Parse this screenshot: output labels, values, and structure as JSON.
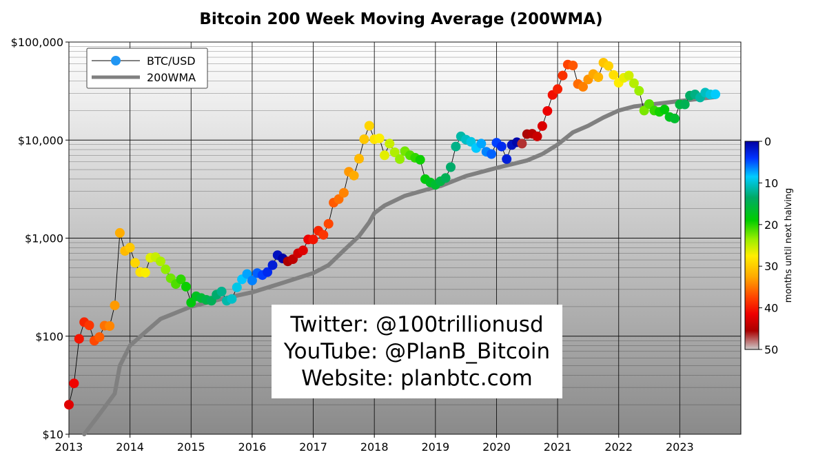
{
  "chart_data": {
    "type": "scatter",
    "title": "Bitcoin 200 Week Moving Average (200WMA)",
    "xlabel": "",
    "ylabel": "",
    "y_scale": "log",
    "ylim": [
      10,
      100000
    ],
    "xlim": [
      "2013-01-01",
      "2024-01-01"
    ],
    "y_ticks": [
      {
        "value": 10,
        "label": "$10"
      },
      {
        "value": 100,
        "label": "$100"
      },
      {
        "value": 1000,
        "label": "$1,000"
      },
      {
        "value": 10000,
        "label": "$10,000"
      },
      {
        "value": 100000,
        "label": "$100,000"
      }
    ],
    "x_ticks": [
      "2013",
      "2014",
      "2015",
      "2016",
      "2017",
      "2018",
      "2019",
      "2020",
      "2021",
      "2022",
      "2023"
    ],
    "grid": true,
    "legend": {
      "position": "top-left",
      "entries": [
        {
          "label": "BTC/USD",
          "style": "line-with-markers",
          "color": "#2196f3"
        },
        {
          "label": "200WMA",
          "style": "thick-line",
          "color": "#808080"
        }
      ]
    },
    "colorbar": {
      "label": "months until next halving",
      "min": 0,
      "max": 50,
      "ticks": [
        "0",
        "10",
        "20",
        "30",
        "40",
        "50"
      ],
      "colormap": "nipy_spectral_reversed"
    },
    "series": [
      {
        "name": "BTC/USD",
        "x": [
          "2013-01-01",
          "2013-02-01",
          "2013-03-01",
          "2013-04-01",
          "2013-05-01",
          "2013-06-01",
          "2013-07-01",
          "2013-08-01",
          "2013-09-01",
          "2013-10-01",
          "2013-11-01",
          "2013-12-01",
          "2014-01-01",
          "2014-02-01",
          "2014-03-01",
          "2014-04-01",
          "2014-05-01",
          "2014-06-01",
          "2014-07-01",
          "2014-08-01",
          "2014-09-01",
          "2014-10-01",
          "2014-11-01",
          "2014-12-01",
          "2015-01-01",
          "2015-02-01",
          "2015-03-01",
          "2015-04-01",
          "2015-05-01",
          "2015-06-01",
          "2015-07-01",
          "2015-08-01",
          "2015-09-01",
          "2015-10-01",
          "2015-11-01",
          "2015-12-01",
          "2016-01-01",
          "2016-02-01",
          "2016-03-01",
          "2016-04-01",
          "2016-05-01",
          "2016-06-01",
          "2016-07-01",
          "2016-08-01",
          "2016-09-01",
          "2016-10-01",
          "2016-11-01",
          "2016-12-01",
          "2017-01-01",
          "2017-02-01",
          "2017-03-01",
          "2017-04-01",
          "2017-05-01",
          "2017-06-01",
          "2017-07-01",
          "2017-08-01",
          "2017-09-01",
          "2017-10-01",
          "2017-11-01",
          "2017-12-01",
          "2018-01-01",
          "2018-02-01",
          "2018-03-01",
          "2018-04-01",
          "2018-05-01",
          "2018-06-01",
          "2018-07-01",
          "2018-08-01",
          "2018-09-01",
          "2018-10-01",
          "2018-11-01",
          "2018-12-01",
          "2019-01-01",
          "2019-02-01",
          "2019-03-01",
          "2019-04-01",
          "2019-05-01",
          "2019-06-01",
          "2019-07-01",
          "2019-08-01",
          "2019-09-01",
          "2019-10-01",
          "2019-11-01",
          "2019-12-01",
          "2020-01-01",
          "2020-02-01",
          "2020-03-01",
          "2020-04-01",
          "2020-05-01",
          "2020-06-01",
          "2020-07-01",
          "2020-08-01",
          "2020-09-01",
          "2020-10-01",
          "2020-11-01",
          "2020-12-01",
          "2021-01-01",
          "2021-02-01",
          "2021-03-01",
          "2021-04-01",
          "2021-05-01",
          "2021-06-01",
          "2021-07-01",
          "2021-08-01",
          "2021-09-01",
          "2021-10-01",
          "2021-11-01",
          "2021-12-01",
          "2022-01-01",
          "2022-02-01",
          "2022-03-01",
          "2022-04-01",
          "2022-05-01",
          "2022-06-01",
          "2022-07-01",
          "2022-08-01",
          "2022-09-01",
          "2022-10-01",
          "2022-11-01",
          "2022-12-01",
          "2023-01-01",
          "2023-02-01",
          "2023-03-01",
          "2023-04-01",
          "2023-05-01",
          "2023-06-01",
          "2023-07-01",
          "2023-08-01"
        ],
        "y": [
          20,
          33,
          94,
          139,
          129,
          90,
          98,
          128,
          127,
          206,
          1130,
          740,
          800,
          560,
          450,
          445,
          630,
          640,
          580,
          480,
          390,
          340,
          380,
          320,
          220,
          255,
          245,
          235,
          230,
          265,
          285,
          230,
          240,
          315,
          380,
          430,
          370,
          440,
          420,
          450,
          530,
          670,
          620,
          580,
          610,
          700,
          750,
          970,
          970,
          1190,
          1080,
          1400,
          2300,
          2500,
          2900,
          4750,
          4350,
          6450,
          10200,
          14000,
          10200,
          10400,
          7000,
          9200,
          7500,
          6400,
          7700,
          7000,
          6600,
          6300,
          4000,
          3700,
          3500,
          3800,
          4100,
          5300,
          8600,
          10900,
          10100,
          9600,
          8300,
          9200,
          7600,
          7200,
          9400,
          8600,
          6400,
          8900,
          9500,
          9200,
          11500,
          11600,
          10900,
          13900,
          19800,
          28900,
          33100,
          45500,
          58900,
          57700,
          37300,
          35000,
          41500,
          47100,
          43800,
          61500,
          57000,
          46200,
          38500,
          43200,
          45500,
          38000,
          31800,
          20000,
          23300,
          20000,
          19400,
          20500,
          17200,
          16600,
          23100,
          23100,
          28400,
          29200,
          27200,
          30500,
          29200,
          29300
        ]
      },
      {
        "name": "200WMA",
        "x": [
          "2013-04-01",
          "2013-07-01",
          "2013-10-01",
          "2013-11-01",
          "2014-01-01",
          "2014-04-01",
          "2014-07-01",
          "2015-01-01",
          "2015-07-01",
          "2016-01-01",
          "2016-07-01",
          "2017-01-01",
          "2017-04-01",
          "2017-07-01",
          "2017-10-01",
          "2017-12-01",
          "2018-01-01",
          "2018-03-01",
          "2018-07-01",
          "2018-12-01",
          "2019-02-01",
          "2019-07-01",
          "2020-01-01",
          "2020-07-01",
          "2020-10-01",
          "2021-01-01",
          "2021-04-01",
          "2021-07-01",
          "2021-10-01",
          "2022-01-01",
          "2022-04-01",
          "2022-07-01",
          "2023-01-01",
          "2023-08-01"
        ],
        "y": [
          10,
          16,
          26,
          50,
          80,
          110,
          150,
          200,
          240,
          280,
          350,
          440,
          530,
          750,
          1050,
          1450,
          1800,
          2150,
          2700,
          3200,
          3400,
          4300,
          5200,
          6200,
          7200,
          9000,
          12000,
          14000,
          17000,
          20000,
          22000,
          23000,
          25000,
          27500
        ]
      }
    ],
    "annotation_lines": [
      "Twitter: @100trillionusd",
      "YouTube: @PlanB_Bitcoin",
      "Website: planbtc.com"
    ]
  }
}
